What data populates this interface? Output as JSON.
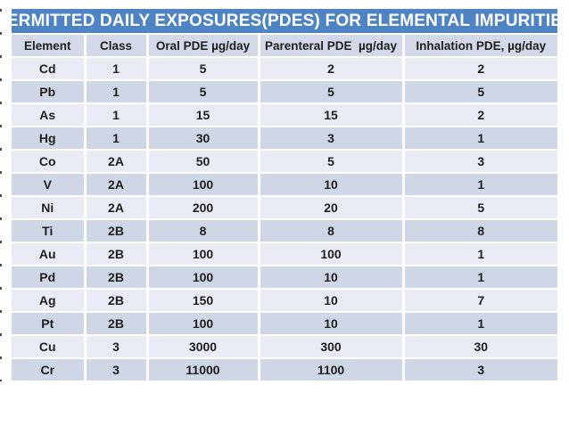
{
  "colors": {
    "title_bg": "#4e84c3",
    "title_text": "#ffffff",
    "band_light": "#e9ecf4",
    "band_dark": "#cfd6e5",
    "header_bg": "#d3d9e8",
    "text": "#1e1e1e",
    "page_bg": "#ffffff"
  },
  "table": {
    "title": "PERMITTED DAILY EXPOSURES(PDES) FOR ELEMENTAL IMPURITIES",
    "columns": [
      "Element",
      "Class",
      "Oral PDE µg/day",
      "Parenteral PDE  µg/day",
      "Inhalation PDE, µg/day"
    ],
    "rows": [
      [
        "Cd",
        "1",
        "5",
        "2",
        "2"
      ],
      [
        "Pb",
        "1",
        "5",
        "5",
        "5"
      ],
      [
        "As",
        "1",
        "15",
        "15",
        "2"
      ],
      [
        "Hg",
        "1",
        "30",
        "3",
        "1"
      ],
      [
        "Co",
        "2A",
        "50",
        "5",
        "3"
      ],
      [
        "V",
        "2A",
        "100",
        "10",
        "1"
      ],
      [
        "Ni",
        "2A",
        "200",
        "20",
        "5"
      ],
      [
        "Ti",
        "2B",
        "8",
        "8",
        "8"
      ],
      [
        "Au",
        "2B",
        "100",
        "100",
        "1"
      ],
      [
        "Pd",
        "2B",
        "100",
        "10",
        "1"
      ],
      [
        "Ag",
        "2B",
        "150",
        "10",
        "7"
      ],
      [
        "Pt",
        "2B",
        "100",
        "10",
        "1"
      ],
      [
        "Cu",
        "3",
        "3000",
        "300",
        "30"
      ],
      [
        "Cr",
        "3",
        "11000",
        "1100",
        "3"
      ]
    ]
  }
}
